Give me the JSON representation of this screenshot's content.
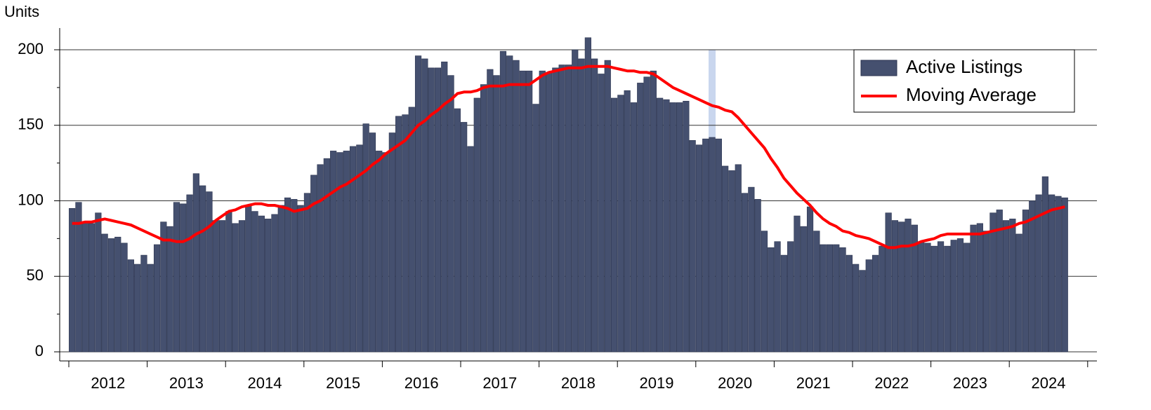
{
  "chart_data": {
    "type": "bar",
    "y_label": "Units",
    "x_labels": [
      "2012",
      "2013",
      "2014",
      "2015",
      "2016",
      "2017",
      "2018",
      "2019",
      "2020",
      "2021",
      "2022",
      "2023",
      "2024"
    ],
    "ylim": [
      0,
      200
    ],
    "yticks": [
      0,
      50,
      100,
      150,
      200
    ],
    "yminor": [
      25,
      75,
      125,
      175
    ],
    "grid": true,
    "legend": "upper right",
    "series": [
      {
        "name": "Active Listings",
        "type": "bar",
        "color": "#45506f",
        "values": [
          95,
          99,
          86,
          85,
          92,
          78,
          75,
          76,
          72,
          61,
          58,
          64,
          58,
          71,
          86,
          83,
          99,
          98,
          104,
          118,
          110,
          106,
          87,
          87,
          93,
          85,
          87,
          97,
          93,
          90,
          88,
          91,
          97,
          102,
          101,
          97,
          105,
          117,
          124,
          128,
          133,
          132,
          133,
          136,
          137,
          151,
          145,
          133,
          132,
          145,
          156,
          157,
          162,
          196,
          194,
          188,
          188,
          192,
          183,
          161,
          152,
          136,
          168,
          177,
          187,
          183,
          199,
          196,
          193,
          186,
          186,
          164,
          186,
          185,
          188,
          190,
          190,
          200,
          194,
          208,
          194,
          184,
          193,
          168,
          170,
          173,
          165,
          178,
          182,
          186,
          168,
          167,
          165,
          165,
          166,
          140,
          137,
          141,
          142,
          141,
          123,
          120,
          124,
          105,
          109,
          101,
          80,
          69,
          73,
          64,
          73,
          90,
          83,
          96,
          80,
          71,
          71,
          71,
          69,
          64,
          58,
          54,
          61,
          64,
          70,
          92,
          87,
          86,
          88,
          84,
          73,
          72,
          70,
          73,
          70,
          74,
          75,
          72,
          84,
          85,
          80,
          92,
          94,
          87,
          88,
          78,
          94,
          100,
          104,
          116,
          104,
          103,
          102
        ]
      },
      {
        "name": "Moving Average",
        "type": "line",
        "color": "#ff0000",
        "values": [
          85,
          85,
          86,
          86,
          87,
          88,
          87,
          86,
          85,
          84,
          82,
          80,
          78,
          76,
          74,
          74,
          73,
          73,
          75,
          78,
          80,
          83,
          87,
          90,
          93,
          94,
          96,
          97,
          98,
          98,
          97,
          97,
          96,
          95,
          93,
          94,
          95,
          98,
          100,
          103,
          106,
          109,
          111,
          114,
          117,
          120,
          124,
          127,
          131,
          134,
          137,
          140,
          145,
          150,
          153,
          157,
          160,
          164,
          167,
          171,
          172,
          172,
          173,
          175,
          176,
          176,
          176,
          177,
          177,
          177,
          177,
          180,
          183,
          185,
          186,
          187,
          188,
          188,
          188,
          189,
          189,
          189,
          189,
          188,
          187,
          186,
          186,
          185,
          185,
          184,
          181,
          178,
          175,
          173,
          171,
          169,
          167,
          165,
          163,
          162,
          160,
          159,
          155,
          150,
          145,
          140,
          135,
          128,
          122,
          115,
          110,
          105,
          101,
          97,
          92,
          88,
          85,
          83,
          80,
          79,
          77,
          76,
          75,
          73,
          71,
          69,
          69,
          70,
          70,
          71,
          73,
          74,
          75,
          77,
          78,
          78,
          78,
          78,
          78,
          78,
          79,
          80,
          81,
          82,
          83,
          85,
          86,
          88,
          90,
          92,
          94,
          95,
          96
        ]
      }
    ]
  }
}
